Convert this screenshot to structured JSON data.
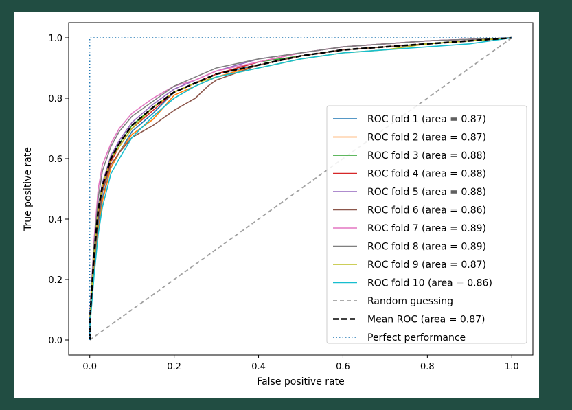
{
  "chart_data": {
    "type": "line",
    "xlabel": "False positive rate",
    "ylabel": "True positive rate",
    "xlim": [
      -0.05,
      1.05
    ],
    "ylim": [
      -0.05,
      1.05
    ],
    "x_ticks": [
      "0.0",
      "0.2",
      "0.4",
      "0.6",
      "0.8",
      "1.0"
    ],
    "y_ticks": [
      "0.0",
      "0.2",
      "0.4",
      "0.6",
      "0.8",
      "1.0"
    ],
    "grid": false,
    "legend_position": "lower-right",
    "series": [
      {
        "name": "ROC fold 1 (area = 0.87)",
        "color": "#1f77b4",
        "style": "solid",
        "x": [
          0,
          0,
          0.01,
          0.02,
          0.03,
          0.05,
          0.07,
          0.1,
          0.15,
          0.2,
          0.25,
          0.3,
          0.4,
          0.5,
          0.6,
          0.7,
          0.8,
          0.9,
          1.0
        ],
        "y": [
          0,
          0.05,
          0.25,
          0.38,
          0.47,
          0.57,
          0.62,
          0.69,
          0.75,
          0.82,
          0.85,
          0.88,
          0.91,
          0.94,
          0.96,
          0.97,
          0.98,
          0.99,
          1.0
        ]
      },
      {
        "name": "ROC fold 2 (area = 0.87)",
        "color": "#ff7f0e",
        "style": "solid",
        "x": [
          0,
          0,
          0.01,
          0.02,
          0.03,
          0.05,
          0.07,
          0.1,
          0.15,
          0.2,
          0.25,
          0.3,
          0.4,
          0.5,
          0.6,
          0.7,
          0.8,
          0.9,
          1.0
        ],
        "y": [
          0,
          0.04,
          0.22,
          0.36,
          0.46,
          0.57,
          0.62,
          0.68,
          0.73,
          0.81,
          0.84,
          0.87,
          0.91,
          0.94,
          0.96,
          0.97,
          0.98,
          0.99,
          1.0
        ]
      },
      {
        "name": "ROC fold 3 (area = 0.88)",
        "color": "#2ca02c",
        "style": "solid",
        "x": [
          0,
          0,
          0.01,
          0.02,
          0.03,
          0.05,
          0.07,
          0.1,
          0.15,
          0.2,
          0.25,
          0.3,
          0.4,
          0.5,
          0.6,
          0.7,
          0.8,
          0.9,
          1.0
        ],
        "y": [
          0,
          0.06,
          0.28,
          0.42,
          0.51,
          0.6,
          0.65,
          0.71,
          0.77,
          0.82,
          0.85,
          0.88,
          0.92,
          0.94,
          0.96,
          0.97,
          0.98,
          0.99,
          1.0
        ]
      },
      {
        "name": "ROC fold 4 (area = 0.88)",
        "color": "#d62728",
        "style": "solid",
        "x": [
          0,
          0,
          0.01,
          0.02,
          0.03,
          0.05,
          0.07,
          0.1,
          0.15,
          0.2,
          0.25,
          0.3,
          0.4,
          0.5,
          0.6,
          0.7,
          0.8,
          0.9,
          1.0
        ],
        "y": [
          0,
          0.05,
          0.27,
          0.41,
          0.5,
          0.59,
          0.64,
          0.7,
          0.76,
          0.82,
          0.85,
          0.88,
          0.92,
          0.95,
          0.97,
          0.98,
          0.99,
          0.995,
          1.0
        ]
      },
      {
        "name": "ROC fold 5 (area = 0.88)",
        "color": "#9467bd",
        "style": "solid",
        "x": [
          0,
          0,
          0.01,
          0.02,
          0.03,
          0.05,
          0.07,
          0.1,
          0.15,
          0.2,
          0.25,
          0.3,
          0.4,
          0.5,
          0.6,
          0.7,
          0.8,
          0.9,
          1.0
        ],
        "y": [
          0,
          0.06,
          0.3,
          0.44,
          0.52,
          0.61,
          0.66,
          0.72,
          0.78,
          0.83,
          0.86,
          0.89,
          0.93,
          0.95,
          0.97,
          0.98,
          0.99,
          0.995,
          1.0
        ]
      },
      {
        "name": "ROC fold 6 (area = 0.86)",
        "color": "#8c564b",
        "style": "solid",
        "x": [
          0,
          0,
          0.01,
          0.02,
          0.03,
          0.05,
          0.07,
          0.1,
          0.15,
          0.2,
          0.25,
          0.28,
          0.3,
          0.4,
          0.5,
          0.6,
          0.7,
          0.8,
          0.9,
          1.0
        ],
        "y": [
          0,
          0.05,
          0.26,
          0.4,
          0.49,
          0.58,
          0.62,
          0.67,
          0.71,
          0.76,
          0.8,
          0.84,
          0.86,
          0.91,
          0.94,
          0.96,
          0.97,
          0.98,
          0.99,
          1.0
        ]
      },
      {
        "name": "ROC fold 7 (area = 0.89)",
        "color": "#e377c2",
        "style": "solid",
        "x": [
          0,
          0,
          0.01,
          0.02,
          0.03,
          0.05,
          0.07,
          0.1,
          0.15,
          0.2,
          0.25,
          0.3,
          0.4,
          0.5,
          0.6,
          0.7,
          0.8,
          0.9,
          1.0
        ],
        "y": [
          0,
          0.08,
          0.33,
          0.5,
          0.58,
          0.65,
          0.7,
          0.75,
          0.8,
          0.84,
          0.86,
          0.89,
          0.92,
          0.95,
          0.97,
          0.98,
          0.99,
          0.995,
          1.0
        ]
      },
      {
        "name": "ROC fold 8 (area = 0.89)",
        "color": "#7f7f7f",
        "style": "solid",
        "x": [
          0,
          0,
          0.01,
          0.02,
          0.03,
          0.05,
          0.07,
          0.1,
          0.15,
          0.2,
          0.25,
          0.3,
          0.4,
          0.5,
          0.6,
          0.7,
          0.8,
          0.9,
          1.0
        ],
        "y": [
          0,
          0.07,
          0.31,
          0.47,
          0.56,
          0.64,
          0.69,
          0.74,
          0.79,
          0.84,
          0.87,
          0.9,
          0.93,
          0.95,
          0.97,
          0.98,
          0.99,
          0.995,
          1.0
        ]
      },
      {
        "name": "ROC fold 9 (area = 0.87)",
        "color": "#bcbd22",
        "style": "solid",
        "x": [
          0,
          0,
          0.01,
          0.02,
          0.03,
          0.05,
          0.07,
          0.1,
          0.15,
          0.2,
          0.25,
          0.3,
          0.4,
          0.5,
          0.6,
          0.7,
          0.8,
          0.9,
          1.0
        ],
        "y": [
          0,
          0.06,
          0.28,
          0.43,
          0.51,
          0.6,
          0.64,
          0.7,
          0.77,
          0.82,
          0.85,
          0.87,
          0.9,
          0.93,
          0.95,
          0.96,
          0.98,
          0.99,
          1.0
        ]
      },
      {
        "name": "ROC fold 10 (area = 0.86)",
        "color": "#17becf",
        "style": "solid",
        "x": [
          0,
          0,
          0.01,
          0.02,
          0.03,
          0.05,
          0.07,
          0.1,
          0.15,
          0.2,
          0.25,
          0.3,
          0.4,
          0.5,
          0.6,
          0.7,
          0.8,
          0.9,
          1.0
        ],
        "y": [
          0,
          0.04,
          0.21,
          0.35,
          0.44,
          0.55,
          0.6,
          0.67,
          0.74,
          0.8,
          0.84,
          0.87,
          0.9,
          0.93,
          0.95,
          0.96,
          0.97,
          0.98,
          1.0
        ]
      },
      {
        "name": "Random guessing",
        "color": "#a0a0a0",
        "style": "dashed",
        "x": [
          0,
          1
        ],
        "y": [
          0,
          1
        ]
      },
      {
        "name": "Mean ROC (area = 0.87)",
        "color": "#000000",
        "style": "mean-dashed",
        "x": [
          0,
          0,
          0.01,
          0.02,
          0.03,
          0.05,
          0.07,
          0.1,
          0.15,
          0.2,
          0.25,
          0.3,
          0.4,
          0.5,
          0.6,
          0.7,
          0.8,
          0.9,
          1.0
        ],
        "y": [
          0,
          0.06,
          0.28,
          0.43,
          0.51,
          0.6,
          0.65,
          0.71,
          0.77,
          0.82,
          0.85,
          0.88,
          0.91,
          0.94,
          0.96,
          0.97,
          0.98,
          0.99,
          1.0
        ]
      },
      {
        "name": "Perfect performance",
        "color": "#1f77b4",
        "style": "dotted",
        "x": [
          0,
          0,
          1
        ],
        "y": [
          0,
          1,
          1
        ]
      }
    ]
  }
}
